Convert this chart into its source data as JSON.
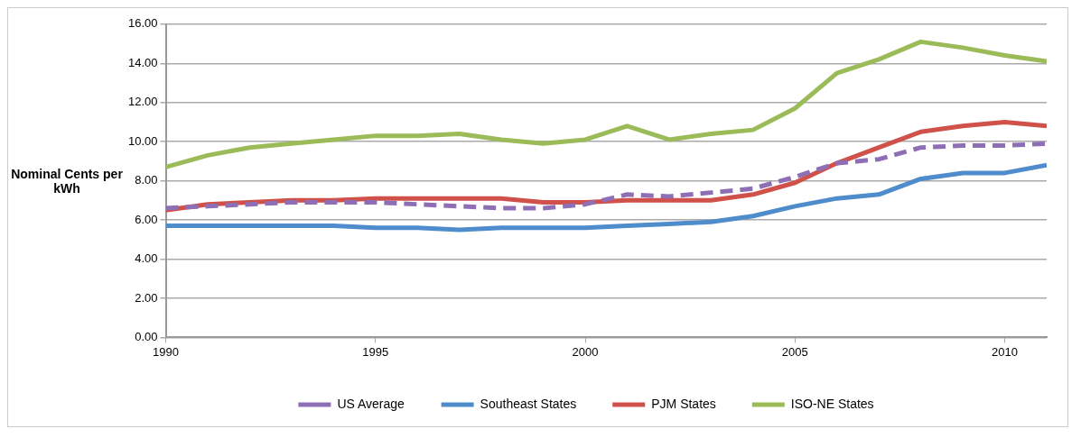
{
  "chart_data": {
    "type": "line",
    "ylabel": "Nominal Cents per kWh",
    "x": [
      1990,
      1991,
      1992,
      1993,
      1994,
      1995,
      1996,
      1997,
      1998,
      1999,
      2000,
      2001,
      2002,
      2003,
      2004,
      2005,
      2006,
      2007,
      2008,
      2009,
      2010,
      2011
    ],
    "xlim": [
      1990,
      2011
    ],
    "xticks": [
      1990,
      1995,
      2000,
      2005,
      2010
    ],
    "ylim": [
      0,
      16
    ],
    "yticks": [
      {
        "value": 0,
        "label": "0.00"
      },
      {
        "value": 2,
        "label": "2.00"
      },
      {
        "value": 4,
        "label": "4.00"
      },
      {
        "value": 6,
        "label": "6.00"
      },
      {
        "value": 8,
        "label": "8.00"
      },
      {
        "value": 10,
        "label": "10.00"
      },
      {
        "value": 12,
        "label": "12.00"
      },
      {
        "value": 14,
        "label": "14.00"
      },
      {
        "value": 16,
        "label": "16.00"
      }
    ],
    "grid": "y",
    "legend": "bottom",
    "marker": "none",
    "series": [
      {
        "name": "US Average",
        "color": "#8e6fb5",
        "line_style": "dashed",
        "values": [
          6.6,
          6.7,
          6.8,
          6.9,
          6.9,
          6.9,
          6.8,
          6.7,
          6.6,
          6.6,
          6.8,
          7.3,
          7.2,
          7.4,
          7.6,
          8.2,
          8.9,
          9.1,
          9.7,
          9.8,
          9.8,
          9.9
        ]
      },
      {
        "name": "Southeast States",
        "color": "#4f8ccb",
        "values": [
          5.7,
          5.7,
          5.7,
          5.7,
          5.7,
          5.6,
          5.6,
          5.5,
          5.6,
          5.6,
          5.6,
          5.7,
          5.8,
          5.9,
          6.2,
          6.7,
          7.1,
          7.3,
          8.1,
          8.4,
          8.4,
          8.8
        ]
      },
      {
        "name": "PJM States",
        "color": "#d0504a",
        "values": [
          6.5,
          6.8,
          6.9,
          7.0,
          7.0,
          7.1,
          7.1,
          7.1,
          7.1,
          6.9,
          6.9,
          7.0,
          7.0,
          7.0,
          7.3,
          7.9,
          8.9,
          9.7,
          10.5,
          10.8,
          11.0,
          10.8
        ]
      },
      {
        "name": "ISO-NE States",
        "color": "#9bbb59",
        "values": [
          8.7,
          9.3,
          9.7,
          9.9,
          10.1,
          10.3,
          10.3,
          10.4,
          10.1,
          9.9,
          10.1,
          10.8,
          10.1,
          10.4,
          10.6,
          11.7,
          13.5,
          14.2,
          15.1,
          14.8,
          14.4,
          14.1
        ]
      }
    ]
  }
}
